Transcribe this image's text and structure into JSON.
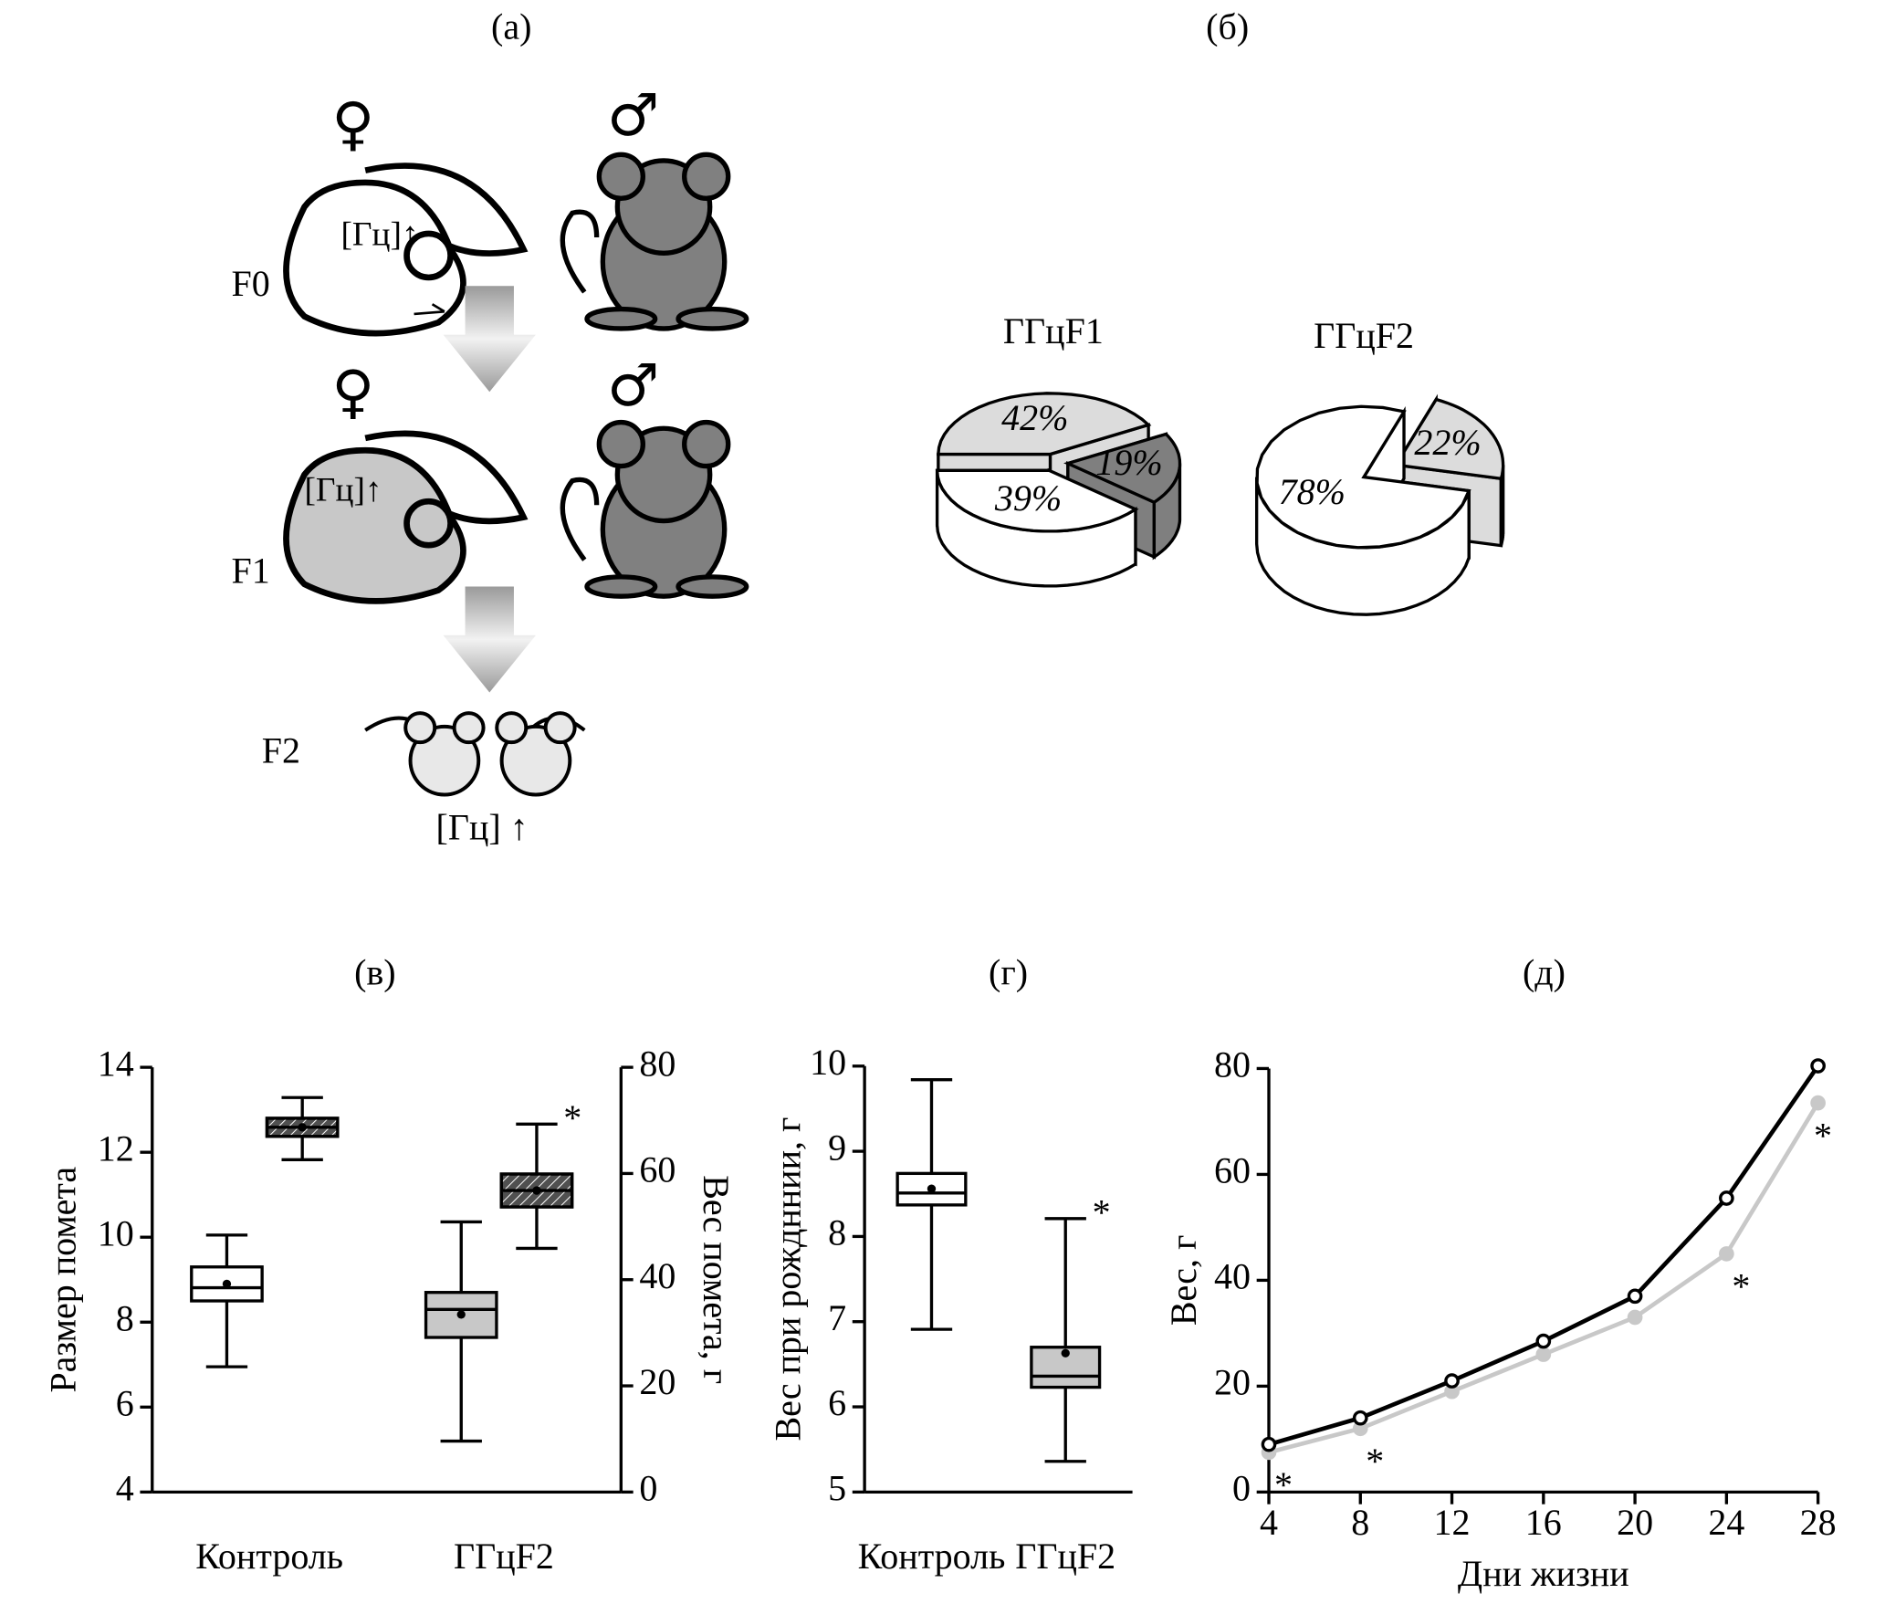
{
  "panels": [
    "(а)",
    "(б)",
    "(в)",
    "(г)",
    "(д)"
  ],
  "panel_a": {
    "generations": [
      "F0",
      "F1",
      "F2"
    ],
    "female": "♀",
    "male": "♂",
    "marker": "[Гц]↑",
    "offspring_marker": "[Гц] ↑"
  },
  "chart_data": [
    {
      "type": "pie",
      "title": "ГГцF1",
      "values": [
        42,
        19,
        39
      ],
      "value_labels": [
        "42%",
        "19%",
        "39%"
      ],
      "colors": [
        "#dcdcdc",
        "#7f7f7f",
        "#ffffff"
      ]
    },
    {
      "type": "pie",
      "title": "ГГцF2",
      "values": [
        22,
        78
      ],
      "value_labels": [
        "22%",
        "78%"
      ],
      "colors": [
        "#dcdcdc",
        "#ffffff"
      ]
    },
    {
      "type": "box",
      "ylabel": "Размер помета",
      "y2label": "Вес помета, г",
      "categories": [
        "Контроль",
        "ГГцF2"
      ],
      "ylim": [
        4,
        14
      ],
      "yticks": [
        4,
        6,
        8,
        10,
        12,
        14
      ],
      "y2lim": [
        0,
        80
      ],
      "y2ticks": [
        0,
        20,
        40,
        60,
        80
      ],
      "series": [
        {
          "axis": "y",
          "colors": [
            "#ffffff",
            "#c8c8c8"
          ],
          "low": [
            6.95,
            5.2
          ],
          "q1": [
            8.5,
            7.64
          ],
          "median": [
            8.81,
            8.3
          ],
          "q3": [
            9.3,
            8.7
          ],
          "high": [
            10.05,
            10.36
          ],
          "mean": [
            8.9,
            8.18
          ]
        },
        {
          "axis": "y2",
          "colors": [
            "#505050",
            "#505050"
          ],
          "hatch": true,
          "low": [
            62.6,
            45.9
          ],
          "q1": [
            67,
            53.7
          ],
          "median": [
            68.7,
            56.8
          ],
          "q3": [
            70.4,
            59.9
          ],
          "high": [
            74.3,
            69.3
          ],
          "mean": [
            68.7,
            56.8
          ]
        }
      ],
      "annotation": "*"
    },
    {
      "type": "box",
      "ylabel": "Вес при рождннии, г",
      "categories": [
        "Контроль",
        "ГГцF2"
      ],
      "ylim": [
        5,
        10
      ],
      "yticks": [
        5,
        6,
        7,
        8,
        9,
        10
      ],
      "series": [
        {
          "axis": "y",
          "colors": [
            "#ffffff",
            "#c8c8c8"
          ],
          "low": [
            6.91,
            5.36
          ],
          "q1": [
            8.37,
            6.23
          ],
          "median": [
            8.51,
            6.36
          ],
          "q3": [
            8.74,
            6.7
          ],
          "high": [
            9.84,
            8.21
          ],
          "mean": [
            8.56,
            6.63
          ]
        }
      ],
      "annotation": "*"
    },
    {
      "type": "line",
      "xlabel": "Дни жизни",
      "ylabel": "Вес, г",
      "x": [
        4,
        8,
        12,
        16,
        20,
        24,
        28
      ],
      "xlim": [
        4,
        28
      ],
      "xticks": [
        4,
        8,
        12,
        16,
        20,
        24,
        28
      ],
      "ylim": [
        0,
        80
      ],
      "yticks": [
        0,
        20,
        40,
        60,
        80
      ],
      "series": [
        {
          "color": "#000000",
          "values": [
            9,
            14,
            21,
            28.5,
            37,
            55.5,
            80.5
          ]
        },
        {
          "color": "#c8c8c8",
          "values": [
            7.5,
            12,
            19,
            26,
            33,
            45,
            73.5
          ]
        }
      ],
      "annotations": [
        "*",
        "*",
        "*",
        "*"
      ]
    }
  ]
}
